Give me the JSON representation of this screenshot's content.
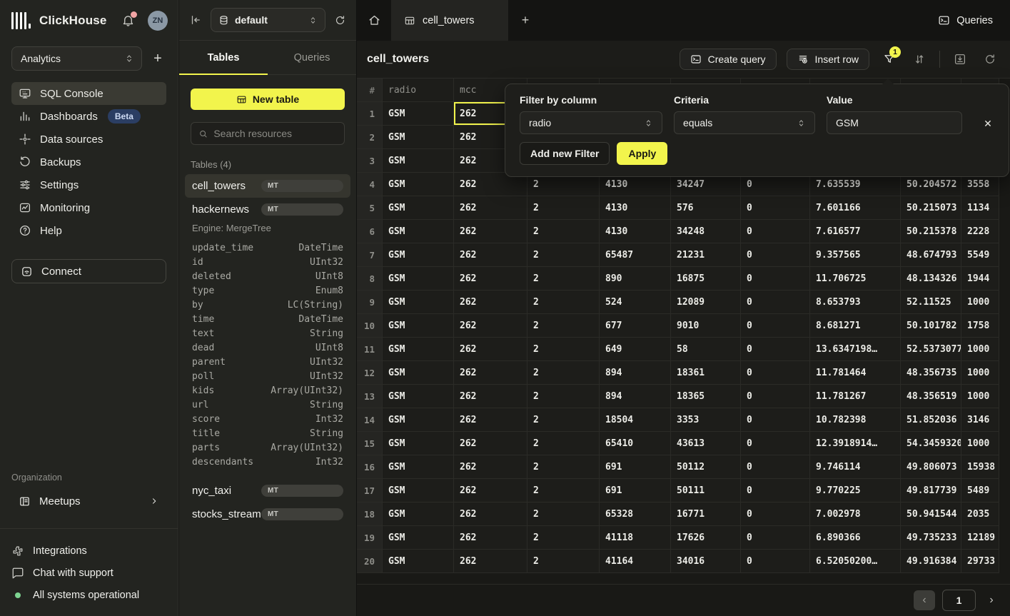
{
  "colors": {
    "accent_yellow": "#f2f44c",
    "beta_badge_bg": "#2b3e63",
    "status_green": "#7ed491",
    "notification_dot": "#f2a5a5",
    "selection_border": "#f2f44c"
  },
  "sidebar": {
    "brand": "ClickHouse",
    "avatar_initials": "ZN",
    "workspace_selector": {
      "value": "Analytics"
    },
    "nav": [
      {
        "label": "SQL Console",
        "icon": "sql-console-icon",
        "active": true
      },
      {
        "label": "Dashboards",
        "icon": "dashboards-icon",
        "badge": "Beta"
      },
      {
        "label": "Data sources",
        "icon": "data-sources-icon"
      },
      {
        "label": "Backups",
        "icon": "backups-icon"
      },
      {
        "label": "Settings",
        "icon": "settings-icon"
      },
      {
        "label": "Monitoring",
        "icon": "monitoring-icon"
      },
      {
        "label": "Help",
        "icon": "help-icon"
      }
    ],
    "connect_label": "Connect",
    "organization_heading": "Organization",
    "organization_items": [
      {
        "label": "Meetups",
        "icon": "meetups-icon"
      }
    ],
    "footer_items": [
      {
        "label": "Integrations",
        "icon": "integrations-icon"
      },
      {
        "label": "Chat with support",
        "icon": "chat-icon"
      },
      {
        "label": "All systems operational",
        "icon": "status-dot"
      }
    ]
  },
  "explorer": {
    "database": "default",
    "tabs": [
      "Tables",
      "Queries"
    ],
    "active_tab": "Tables",
    "new_table_label": "New table",
    "search_placeholder": "Search resources",
    "list_heading": "Tables (4)",
    "tables": [
      {
        "name": "cell_towers",
        "badge": "MT",
        "selected": true
      },
      {
        "name": "hackernews",
        "badge": "MT",
        "engine": "Engine: MergeTree",
        "schema": [
          {
            "field": "update_time",
            "type": "DateTime"
          },
          {
            "field": "id",
            "type": "UInt32"
          },
          {
            "field": "deleted",
            "type": "UInt8"
          },
          {
            "field": "type",
            "type": "Enum8"
          },
          {
            "field": "by",
            "type": "LC(String)"
          },
          {
            "field": "time",
            "type": "DateTime"
          },
          {
            "field": "text",
            "type": "String"
          },
          {
            "field": "dead",
            "type": "UInt8"
          },
          {
            "field": "parent",
            "type": "UInt32"
          },
          {
            "field": "poll",
            "type": "UInt32"
          },
          {
            "field": "kids",
            "type": "Array(UInt32)"
          },
          {
            "field": "url",
            "type": "String"
          },
          {
            "field": "score",
            "type": "Int32"
          },
          {
            "field": "title",
            "type": "String"
          },
          {
            "field": "parts",
            "type": "Array(UInt32)"
          },
          {
            "field": "descendants",
            "type": "Int32"
          }
        ]
      },
      {
        "name": "nyc_taxi",
        "badge": "MT"
      },
      {
        "name": "stocks_stream",
        "badge": "MT"
      }
    ]
  },
  "main": {
    "open_tab_label": "cell_towers",
    "queries_button_label": "Queries",
    "page_title": "cell_towers",
    "toolbar": {
      "create_query_label": "Create query",
      "insert_row_label": "Insert row",
      "filter_badge": "1"
    },
    "grid": {
      "headers": [
        "#",
        "radio",
        "mcc",
        "",
        "",
        "",
        "",
        "",
        "",
        ""
      ],
      "rows": [
        [
          "1",
          "GSM",
          "262",
          "",
          "",
          "",
          "",
          "",
          "",
          ""
        ],
        [
          "2",
          "GSM",
          "262",
          "",
          "",
          "",
          "",
          "",
          "",
          ""
        ],
        [
          "3",
          "GSM",
          "262",
          "",
          "",
          "",
          "",
          "",
          "",
          ""
        ],
        [
          "4",
          "GSM",
          "262",
          "2",
          "4130",
          "34247",
          "0",
          "7.635539",
          "50.204572",
          "3558"
        ],
        [
          "5",
          "GSM",
          "262",
          "2",
          "4130",
          "576",
          "0",
          "7.601166",
          "50.215073",
          "1134"
        ],
        [
          "6",
          "GSM",
          "262",
          "2",
          "4130",
          "34248",
          "0",
          "7.616577",
          "50.215378",
          "2228"
        ],
        [
          "7",
          "GSM",
          "262",
          "2",
          "65487",
          "21231",
          "0",
          "9.357565",
          "48.674793",
          "5549"
        ],
        [
          "8",
          "GSM",
          "262",
          "2",
          "890",
          "16875",
          "0",
          "11.706725",
          "48.134326",
          "1944"
        ],
        [
          "9",
          "GSM",
          "262",
          "2",
          "524",
          "12089",
          "0",
          "8.653793",
          "52.11525",
          "1000"
        ],
        [
          "10",
          "GSM",
          "262",
          "2",
          "677",
          "9010",
          "0",
          "8.681271",
          "50.101782",
          "1758"
        ],
        [
          "11",
          "GSM",
          "262",
          "2",
          "649",
          "58",
          "0",
          "13.6347198…",
          "52.5373077…",
          "1000"
        ],
        [
          "12",
          "GSM",
          "262",
          "2",
          "894",
          "18361",
          "0",
          "11.781464",
          "48.356735",
          "1000"
        ],
        [
          "13",
          "GSM",
          "262",
          "2",
          "894",
          "18365",
          "0",
          "11.781267",
          "48.356519",
          "1000"
        ],
        [
          "14",
          "GSM",
          "262",
          "2",
          "18504",
          "3353",
          "0",
          "10.782398",
          "51.852036",
          "3146"
        ],
        [
          "15",
          "GSM",
          "262",
          "2",
          "65410",
          "43613",
          "0",
          "12.3918914…",
          "54.3459320…",
          "1000"
        ],
        [
          "16",
          "GSM",
          "262",
          "2",
          "691",
          "50112",
          "0",
          "9.746114",
          "49.806073",
          "15938"
        ],
        [
          "17",
          "GSM",
          "262",
          "2",
          "691",
          "50111",
          "0",
          "9.770225",
          "49.817739",
          "5489"
        ],
        [
          "18",
          "GSM",
          "262",
          "2",
          "65328",
          "16771",
          "0",
          "7.002978",
          "50.941544",
          "2035"
        ],
        [
          "19",
          "GSM",
          "262",
          "2",
          "41118",
          "17626",
          "0",
          "6.890366",
          "49.735233",
          "12189"
        ],
        [
          "20",
          "GSM",
          "262",
          "2",
          "41164",
          "34016",
          "0",
          "6.52050200…",
          "49.916384",
          "29733"
        ]
      ],
      "selected_cell": {
        "row_index": 0,
        "col_index": 1
      }
    },
    "pagination": {
      "current_page": "1"
    }
  },
  "filter_popup": {
    "column_label": "Filter by column",
    "column_value": "radio",
    "criteria_label": "Criteria",
    "criteria_value": "equals",
    "value_label": "Value",
    "value_text": "GSM",
    "add_filter_label": "Add new Filter",
    "apply_label": "Apply"
  }
}
